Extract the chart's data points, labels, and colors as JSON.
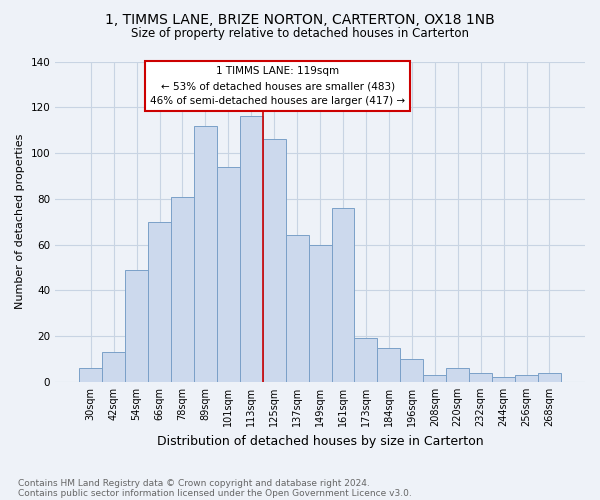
{
  "title": "1, TIMMS LANE, BRIZE NORTON, CARTERTON, OX18 1NB",
  "subtitle": "Size of property relative to detached houses in Carterton",
  "xlabel": "Distribution of detached houses by size in Carterton",
  "ylabel": "Number of detached properties",
  "bar_color": "#ccd9ed",
  "bar_edge_color": "#7aa0c8",
  "grid_color": "#c8d4e3",
  "background_color": "#eef2f8",
  "categories": [
    "30sqm",
    "42sqm",
    "54sqm",
    "66sqm",
    "78sqm",
    "89sqm",
    "101sqm",
    "113sqm",
    "125sqm",
    "137sqm",
    "149sqm",
    "161sqm",
    "173sqm",
    "184sqm",
    "196sqm",
    "208sqm",
    "220sqm",
    "232sqm",
    "244sqm",
    "256sqm",
    "268sqm"
  ],
  "values": [
    6,
    13,
    49,
    70,
    81,
    112,
    94,
    116,
    106,
    64,
    60,
    76,
    19,
    15,
    10,
    3,
    6,
    4,
    2,
    3,
    4
  ],
  "ylim": [
    0,
    140
  ],
  "yticks": [
    0,
    20,
    40,
    60,
    80,
    100,
    120,
    140
  ],
  "property_label": "1 TIMMS LANE: 119sqm",
  "annotation_line1": "← 53% of detached houses are smaller (483)",
  "annotation_line2": "46% of semi-detached houses are larger (417) →",
  "annotation_box_color": "#ffffff",
  "annotation_box_edge": "#cc0000",
  "vline_color": "#cc0000",
  "vline_x_index": 7.5,
  "footnote1": "Contains HM Land Registry data © Crown copyright and database right 2024.",
  "footnote2": "Contains public sector information licensed under the Open Government Licence v3.0."
}
